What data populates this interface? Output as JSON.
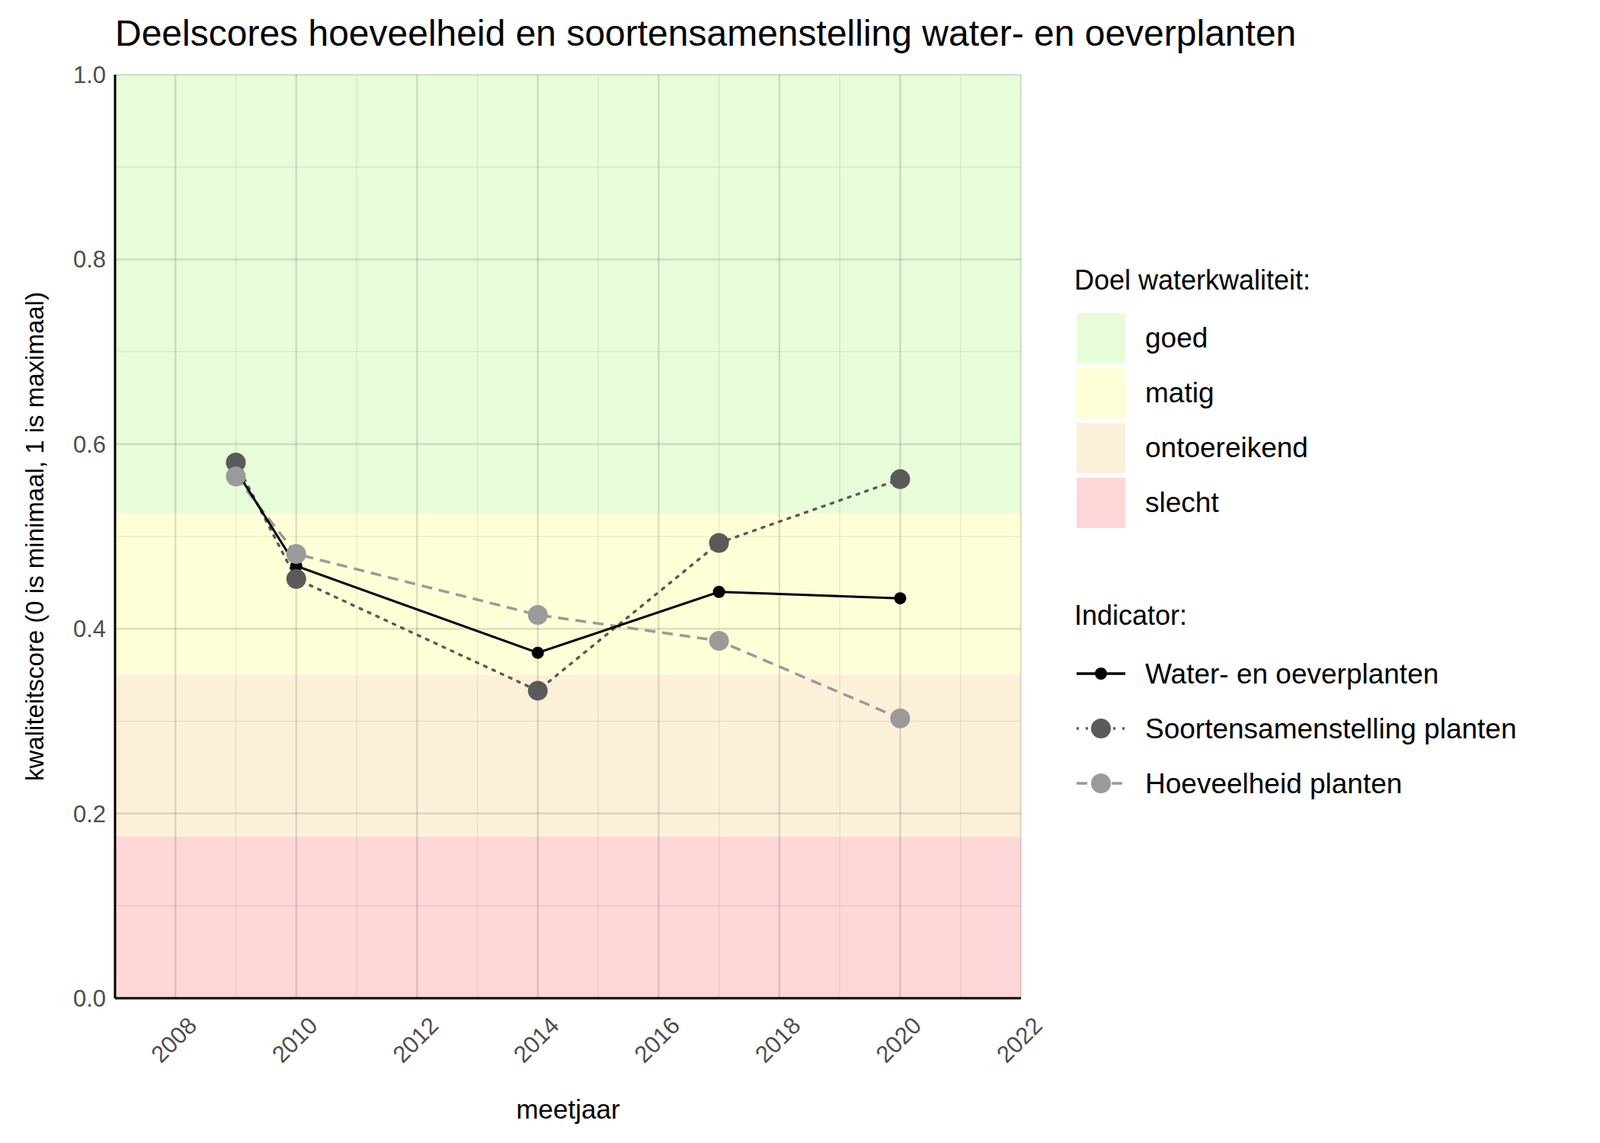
{
  "chart_data": {
    "type": "line",
    "title": "Deelscores hoeveelheid en soortensamenstelling water- en oeverplanten",
    "x_label": "meetjaar",
    "y_label": "kwaliteitscore (0 is minimaal, 1 is maximaal)",
    "x": [
      2009,
      2010,
      2014,
      2017,
      2020
    ],
    "series": [
      {
        "name": "Water- en oeverplanten",
        "color": "#000000",
        "marker": "dot",
        "line_style": "solid",
        "values": [
          0.572,
          0.468,
          0.374,
          0.44,
          0.433
        ]
      },
      {
        "name": "Soortensamenstelling planten",
        "color": "#5a5a5a",
        "marker": "circle",
        "line_style": "dotted",
        "values": [
          0.58,
          0.454,
          0.333,
          0.493,
          0.562
        ]
      },
      {
        "name": "Hoeveelheid planten",
        "color": "#9a9a9a",
        "marker": "circle",
        "line_style": "dashed",
        "values": [
          0.565,
          0.481,
          0.415,
          0.387,
          0.303
        ]
      }
    ],
    "bands": {
      "title": "Doel waterkwaliteit:",
      "items": [
        {
          "name": "goed",
          "from": 0.525,
          "to": 1,
          "color": "#e7fcd9"
        },
        {
          "name": "matig",
          "from": 0.35,
          "to": 0.525,
          "color": "#fefed7"
        },
        {
          "name": "ontoereikend",
          "from": 0.175,
          "to": 0.35,
          "color": "#fdf0d9"
        },
        {
          "name": "slecht",
          "from": 0,
          "to": 0.175,
          "color": "#fed7d9"
        }
      ]
    },
    "legend_title": "Indicator:",
    "legend": "right",
    "grid": true,
    "xlim": [
      2007,
      2022
    ],
    "xticks": [
      2008,
      2010,
      2012,
      2014,
      2016,
      2018,
      2020,
      2022
    ],
    "ylim": [
      0,
      1
    ],
    "yticks": [
      {
        "value": 0,
        "label": "0.0"
      },
      0.2,
      0.4,
      0.6,
      0.8,
      {
        "value": 1,
        "label": "1.0"
      }
    ]
  }
}
